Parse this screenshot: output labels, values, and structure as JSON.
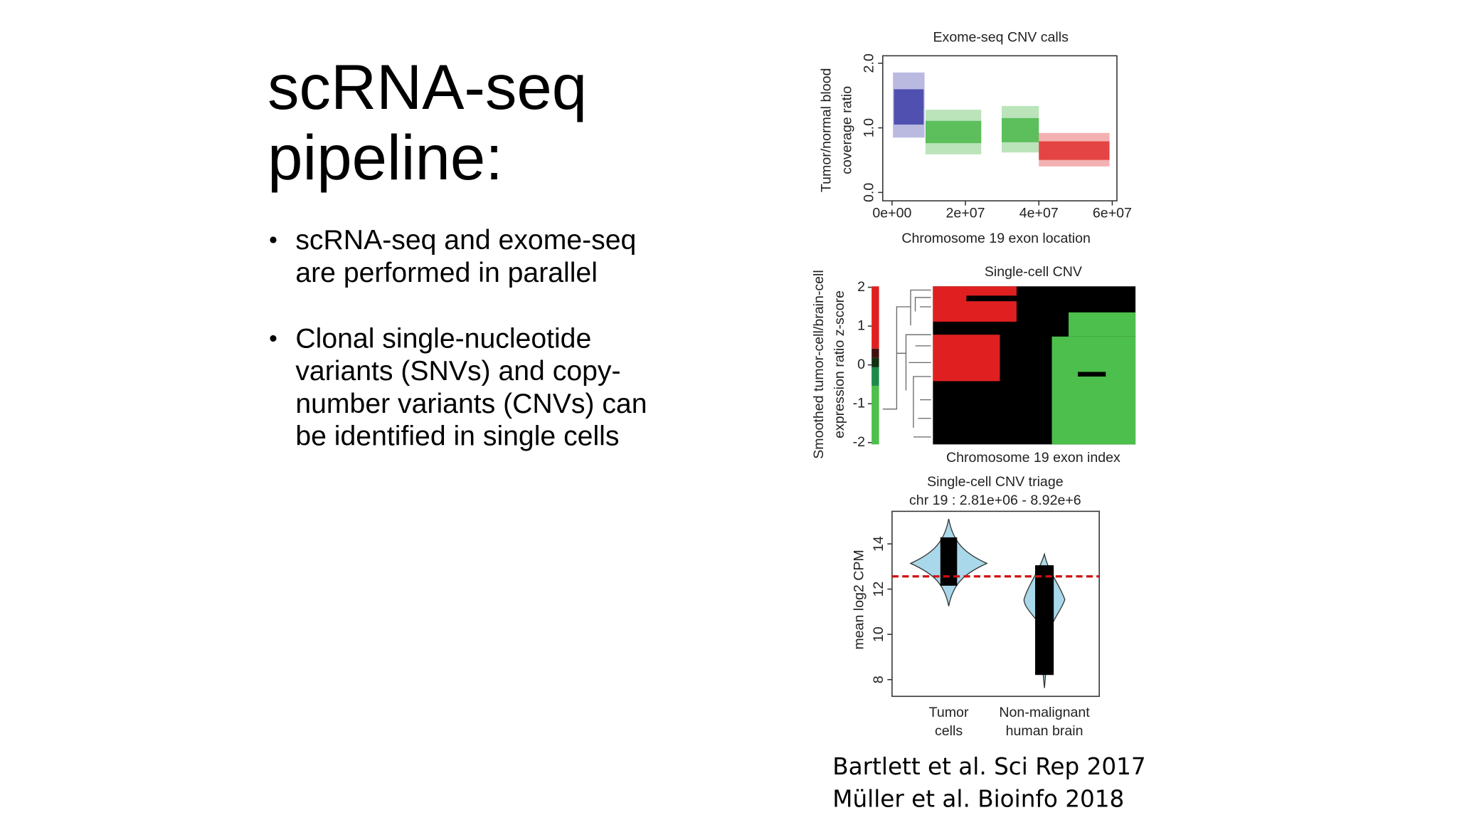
{
  "title_lines": [
    "scRNA-seq",
    "pipeline:"
  ],
  "bullets": [
    [
      "scRNA-seq and exome-seq",
      "are performed in parallel"
    ],
    [
      "Clonal single-nucleotide",
      "variants (SNVs) and copy-",
      "number variants (CNVs) can",
      "be identified in single cells"
    ]
  ],
  "figures": [
    {
      "title": "Exome-seq CNV calls",
      "ylabel": [
        "Tumor/normal blood",
        "coverage ratio"
      ],
      "xlabel": "Chromosome 19 exon location",
      "xticks": [
        {
          "value": 0,
          "label": "0e+00"
        },
        {
          "value": 20000000,
          "label": "2e+07"
        },
        {
          "value": 40000000,
          "label": "4e+07"
        },
        {
          "value": 60000000,
          "label": "6e+07"
        }
      ],
      "yticks": [
        {
          "value": 0,
          "label": "0.0"
        },
        {
          "value": 1,
          "label": "1.0"
        },
        {
          "value": 2,
          "label": "2.0"
        }
      ]
    },
    {
      "title": "Single-cell CNV",
      "ylabel": [
        "Smoothed tumor-cell/brain-cell",
        "expression ratio z-score"
      ],
      "xlabel": "Chromosome 19 exon index",
      "colorbar_ticks": [
        2,
        1,
        0,
        -1,
        -2
      ]
    },
    {
      "title": [
        "Single-cell CNV triage",
        "chr 19 : 2.81e+06 - 8.92e+6"
      ],
      "ylabel": "mean log2 CPM",
      "yticks": [
        8,
        10,
        12,
        14
      ],
      "categories": [
        [
          "Tumor",
          "cells"
        ],
        [
          "Non-malignant",
          "human brain"
        ]
      ]
    }
  ],
  "citations": [
    "Bartlett et al. Sci Rep 2017",
    "Müller et al. Bioinfo 2018"
  ]
}
